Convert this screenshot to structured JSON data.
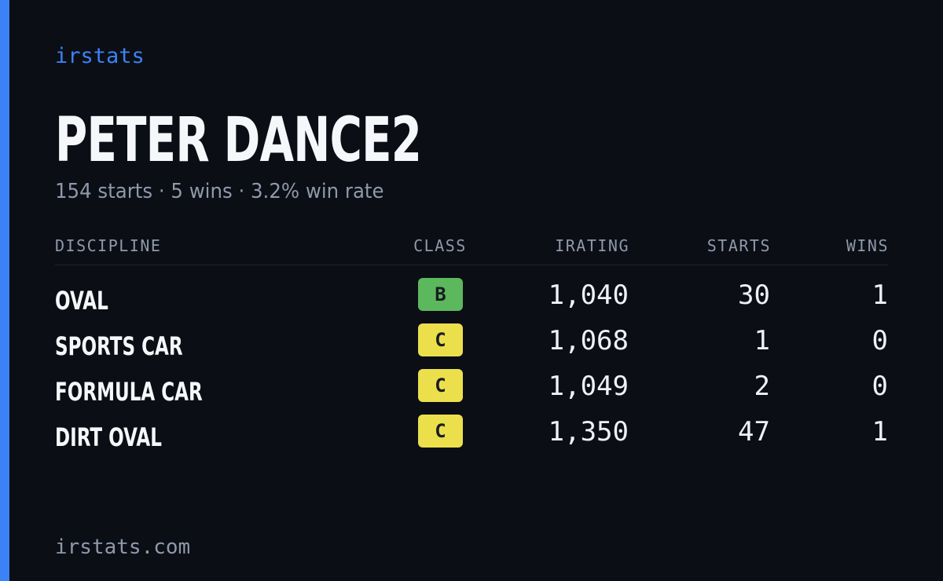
{
  "brand": "irstats",
  "title": "PETER DANCE2",
  "subtitle": "154 starts · 5 wins · 3.2% win rate",
  "table": {
    "headers": [
      "DISCIPLINE",
      "CLASS",
      "IRATING",
      "STARTS",
      "WINS"
    ],
    "rows": [
      {
        "discipline": "OVAL",
        "class": "B",
        "class_color": "#5cb85c",
        "irating": "1,040",
        "starts": "30",
        "wins": "1"
      },
      {
        "discipline": "SPORTS CAR",
        "class": "C",
        "class_color": "#ebe04c",
        "irating": "1,068",
        "starts": "1",
        "wins": "0"
      },
      {
        "discipline": "FORMULA CAR",
        "class": "C",
        "class_color": "#ebe04c",
        "irating": "1,049",
        "starts": "2",
        "wins": "0"
      },
      {
        "discipline": "DIRT OVAL",
        "class": "C",
        "class_color": "#ebe04c",
        "irating": "1,350",
        "starts": "47",
        "wins": "1"
      }
    ]
  },
  "footer": "irstats.com"
}
